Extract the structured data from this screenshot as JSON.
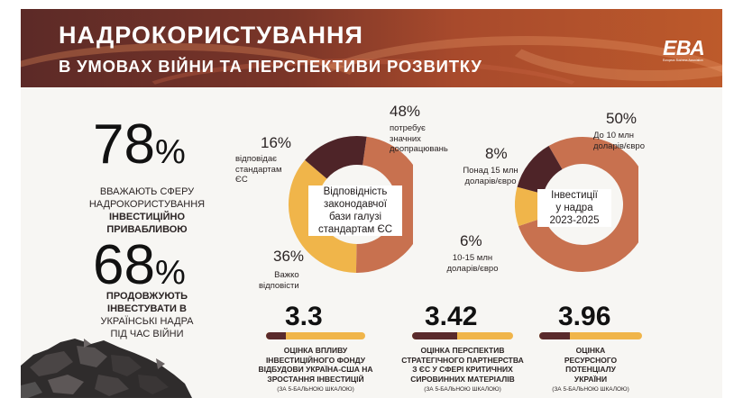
{
  "header": {
    "title": "НАДРОКОРИСТУВАННЯ",
    "subtitle": "В УМОВАХ ВІЙНИ ТА ПЕРСПЕКТИВИ РОЗВИТКУ",
    "logo_text": "ЕВА",
    "logo_subtitle": "European Business Association"
  },
  "stats": [
    {
      "value": "78",
      "unit": "%",
      "line1": "ВВАЖАЮТЬ СФЕРУ",
      "line2": "НАДРОКОРИСТУВАННЯ",
      "line3": "ІНВЕСТИЦІЙНО",
      "line4": "ПРИВАБЛИВОЮ"
    },
    {
      "value": "68",
      "unit": "%",
      "line1": "ПРОДОВЖУЮТЬ",
      "line2": "ІНВЕСТУВАТИ В",
      "line3": "УКРАЇНСЬКІ НАДРА",
      "line4": "ПІД ЧАС ВІЙНИ"
    }
  ],
  "chart_data": [
    {
      "type": "pie",
      "variant": "donut",
      "center_label": "Відповідність законодавчої бази галузі стандартам ЄС",
      "center_lines": [
        "Відповідність",
        "законодавчої",
        "бази галузі",
        "стандартам ЄС"
      ],
      "slices": [
        {
          "label_lines": [
            "потребує",
            "значних",
            "доопрацювань"
          ],
          "value": 48,
          "display": "48%",
          "color": "#c8714f"
        },
        {
          "label_lines": [
            "Важко",
            "відповісти"
          ],
          "value": 36,
          "display": "36%",
          "color": "#f0b54a"
        },
        {
          "label_lines": [
            "відповідає",
            "стандартам",
            "ЄС"
          ],
          "value": 16,
          "display": "16%",
          "color": "#4e2428"
        }
      ]
    },
    {
      "type": "pie",
      "variant": "donut",
      "center_label": "Інвестиції у надра 2023-2025",
      "center_lines": [
        "Інвестиції",
        "у надра",
        "2023-2025"
      ],
      "slices": [
        {
          "label_lines": [
            "До 10 млн",
            "доларів/євро"
          ],
          "value": 50,
          "display": "50%",
          "color": "#c8714f"
        },
        {
          "label_lines": [
            "10-15 млн",
            "доларів/євро"
          ],
          "value": 6,
          "display": "6%",
          "color": "#f0b54a"
        },
        {
          "label_lines": [
            "Понад 15 млн",
            "доларів/євро"
          ],
          "value": 8,
          "display": "8%",
          "color": "#4e2428"
        }
      ]
    }
  ],
  "scores": [
    {
      "value": "3.3",
      "fill": 0.2,
      "lines": [
        "ОЦІНКА ВПЛИВУ",
        "ІНВЕСТИЦІЙНОГО ФОНДУ",
        "ВІДБУДОВИ УКРАЇНА-США НА",
        "ЗРОСТАННЯ ІНВЕСТИЦІЙ"
      ],
      "scale": "(ЗА 5-БАЛЬНОЮ ШКАЛОЮ)"
    },
    {
      "value": "3.42",
      "fill": 0.45,
      "lines": [
        "ОЦІНКА ПЕРСПЕКТИВ",
        "СТРАТЕГІЧНОГО ПАРТНЕРСТВА",
        "З ЄС У СФЕРІ КРИТИЧНИХ",
        "СИРОВИННИХ МАТЕРІАЛІВ"
      ],
      "scale": "(ЗА 5-БАЛЬНОЮ ШКАЛОЮ)"
    },
    {
      "value": "3.96",
      "fill": 0.3,
      "lines": [
        "ОЦІНКА",
        "РЕСУРСНОГО",
        "ПОТЕНЦІАЛУ",
        "УКРАЇНИ"
      ],
      "scale": "(ЗА 5-БАЛЬНОЮ ШКАЛОЮ)"
    }
  ],
  "colors": {
    "dark": "#4e2428",
    "terracotta": "#c8714f",
    "amber": "#f0b54a",
    "score_dark": "#5a2a2c"
  }
}
